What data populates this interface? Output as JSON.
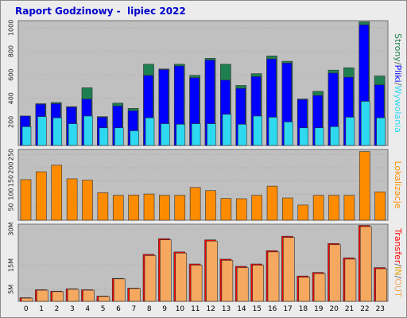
{
  "title": "Raport Godzinowy -  lipiec 2022",
  "colors": {
    "background": "#ececec",
    "plot_bg": "#c0c0c0",
    "strony": "#1e8050",
    "pliki": "#0000ff",
    "wywolania": "#2ed8f0",
    "lokalizacje": "#ff8c00",
    "transfer_in": "#ff0000",
    "transfer_out": "#f4a860",
    "grid": "#9a9a9a",
    "title": "#0000cc"
  },
  "chart_data": [
    {
      "type": "bar",
      "panel": "top",
      "categories": [
        "0",
        "1",
        "2",
        "3",
        "4",
        "5",
        "6",
        "7",
        "8",
        "9",
        "10",
        "11",
        "12",
        "13",
        "14",
        "15",
        "16",
        "17",
        "18",
        "19",
        "20",
        "21",
        "22",
        "23"
      ],
      "ylim": [
        0,
        1060
      ],
      "yticks": [
        "200",
        "400",
        "600",
        "800",
        "1000"
      ],
      "ytick_values": [
        200,
        400,
        600,
        800,
        1000
      ],
      "legend": {
        "placement": "right-vertical",
        "parts": [
          {
            "text": "Strony",
            "color": "#1e8050"
          },
          {
            "text": "/",
            "color": "#606060"
          },
          {
            "text": "Pliki",
            "color": "#0000ff"
          },
          {
            "text": "/",
            "color": "#606060"
          },
          {
            "text": "Wywołania",
            "color": "#2ed8f0"
          }
        ]
      },
      "series": [
        {
          "name": "Strony",
          "values": [
            250,
            355,
            365,
            330,
            490,
            245,
            360,
            315,
            690,
            650,
            690,
            595,
            740,
            690,
            510,
            610,
            760,
            715,
            395,
            460,
            640,
            660,
            1050,
            590
          ]
        },
        {
          "name": "Pliki",
          "values": [
            250,
            350,
            355,
            325,
            395,
            240,
            335,
            295,
            595,
            645,
            675,
            575,
            725,
            555,
            485,
            585,
            735,
            700,
            390,
            425,
            615,
            580,
            1025,
            515
          ]
        },
        {
          "name": "Wywołania",
          "values": [
            160,
            245,
            235,
            185,
            250,
            150,
            150,
            125,
            235,
            185,
            180,
            185,
            185,
            265,
            180,
            250,
            240,
            200,
            150,
            150,
            160,
            240,
            375,
            235
          ]
        }
      ]
    },
    {
      "type": "bar",
      "panel": "middle",
      "categories": [
        "0",
        "1",
        "2",
        "3",
        "4",
        "5",
        "6",
        "7",
        "8",
        "9",
        "10",
        "11",
        "12",
        "13",
        "14",
        "15",
        "16",
        "17",
        "18",
        "19",
        "20",
        "21",
        "22",
        "23"
      ],
      "ylim": [
        0,
        270
      ],
      "yticks": [
        "50",
        "100",
        "150",
        "200",
        "250"
      ],
      "ytick_values": [
        50,
        100,
        150,
        200,
        250
      ],
      "legend": {
        "placement": "right-vertical",
        "parts": [
          {
            "text": "Lokalizacje",
            "color": "#ff8c00"
          }
        ]
      },
      "series": [
        {
          "name": "Lokalizacje",
          "values": [
            155,
            185,
            210,
            158,
            153,
            105,
            95,
            96,
            100,
            95,
            95,
            125,
            113,
            83,
            82,
            95,
            130,
            85,
            58,
            95,
            95,
            95,
            262,
            108
          ]
        }
      ]
    },
    {
      "type": "bar",
      "panel": "bottom",
      "categories": [
        "0",
        "1",
        "2",
        "3",
        "4",
        "5",
        "6",
        "7",
        "8",
        "9",
        "10",
        "11",
        "12",
        "13",
        "14",
        "15",
        "16",
        "17",
        "18",
        "19",
        "20",
        "21",
        "22",
        "23"
      ],
      "ylim": [
        0,
        32000000
      ],
      "yticks": [
        "5M",
        "15M",
        "30M"
      ],
      "ytick_values": [
        5000000,
        15000000,
        30000000
      ],
      "legend": {
        "placement": "right-vertical",
        "parts": [
          {
            "text": "Transfer",
            "color": "#ff0000"
          },
          {
            "text": "/",
            "color": "#606060"
          },
          {
            "text": "IN",
            "color": "#e0a000"
          },
          {
            "text": "/",
            "color": "#606060"
          },
          {
            "text": "OUT",
            "color": "#f4a860"
          }
        ]
      },
      "series": [
        {
          "name": "IN",
          "values": [
            1500000,
            4800000,
            4200000,
            5200000,
            4800000,
            2200000,
            9500000,
            5500000,
            19500000,
            26000000,
            20500000,
            15500000,
            25500000,
            17500000,
            14500000,
            15500000,
            21000000,
            27000000,
            10500000,
            12000000,
            24000000,
            18000000,
            31500000,
            14000000
          ]
        },
        {
          "name": "OUT",
          "values": [
            1300000,
            4600000,
            4000000,
            5000000,
            4600000,
            2000000,
            9300000,
            5300000,
            19000000,
            25500000,
            20000000,
            15000000,
            25000000,
            17000000,
            14000000,
            15000000,
            20500000,
            26500000,
            10000000,
            11500000,
            23500000,
            17500000,
            31000000,
            13500000
          ]
        }
      ]
    }
  ]
}
